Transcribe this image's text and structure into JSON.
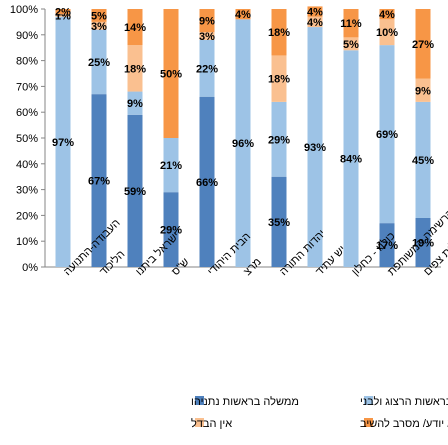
{
  "chart_data": {
    "type": "bar",
    "stacked": true,
    "percent": true,
    "ylim": [
      0,
      100
    ],
    "yticks": [
      "0%",
      "10%",
      "20%",
      "30%",
      "40%",
      "50%",
      "60%",
      "70%",
      "80%",
      "90%",
      "100%"
    ],
    "categories": [
      "העבודה-התנועה",
      "הליכוד",
      "ישראל ביתנו",
      "ש\"ס",
      "הבית היהודי",
      "מרצ",
      "יהדות התורה",
      "יש עתיד",
      "כולנו - כחלון",
      "הרשימה המשותפת",
      "קולות צפים"
    ],
    "series": [
      {
        "name": "ממשלה בראשות נתניהו",
        "color": "#4f81bd",
        "values": [
          0,
          67,
          59,
          29,
          66,
          0,
          35,
          0,
          0,
          17,
          19
        ],
        "labels": [
          "",
          "67%",
          "59%",
          "29%",
          "66%",
          "",
          "35%",
          "",
          "",
          "17%",
          "19%"
        ]
      },
      {
        "name": "ממשלה בראשות הרצוג ולבני",
        "color": "#9dc3e6",
        "values": [
          97,
          25,
          9,
          21,
          22,
          96,
          29,
          93,
          84,
          69,
          45
        ],
        "labels": [
          "97%",
          "25%",
          "9%",
          "21%",
          "22%",
          "96%",
          "29%",
          "93%",
          "84%",
          "69%",
          "45%"
        ]
      },
      {
        "name": "אין הבדל",
        "color": "#fac090",
        "values": [
          1,
          3,
          18,
          0,
          3,
          0,
          18,
          4,
          5,
          10,
          9
        ],
        "labels": [
          "1%",
          "3%",
          "18%",
          "",
          "3%",
          "",
          "18%",
          "4%",
          "5%",
          "10%",
          "9%"
        ]
      },
      {
        "name": "לא יודע/ מסרב להשיב",
        "color": "#f79646",
        "values": [
          2,
          5,
          14,
          50,
          9,
          4,
          18,
          4,
          11,
          4,
          27
        ],
        "labels": [
          "2%",
          "5%",
          "14%",
          "50%",
          "9%",
          "4%",
          "18%",
          "4%",
          "11%",
          "4%",
          "27%"
        ]
      }
    ],
    "legend_position": "bottom",
    "grid": false
  }
}
